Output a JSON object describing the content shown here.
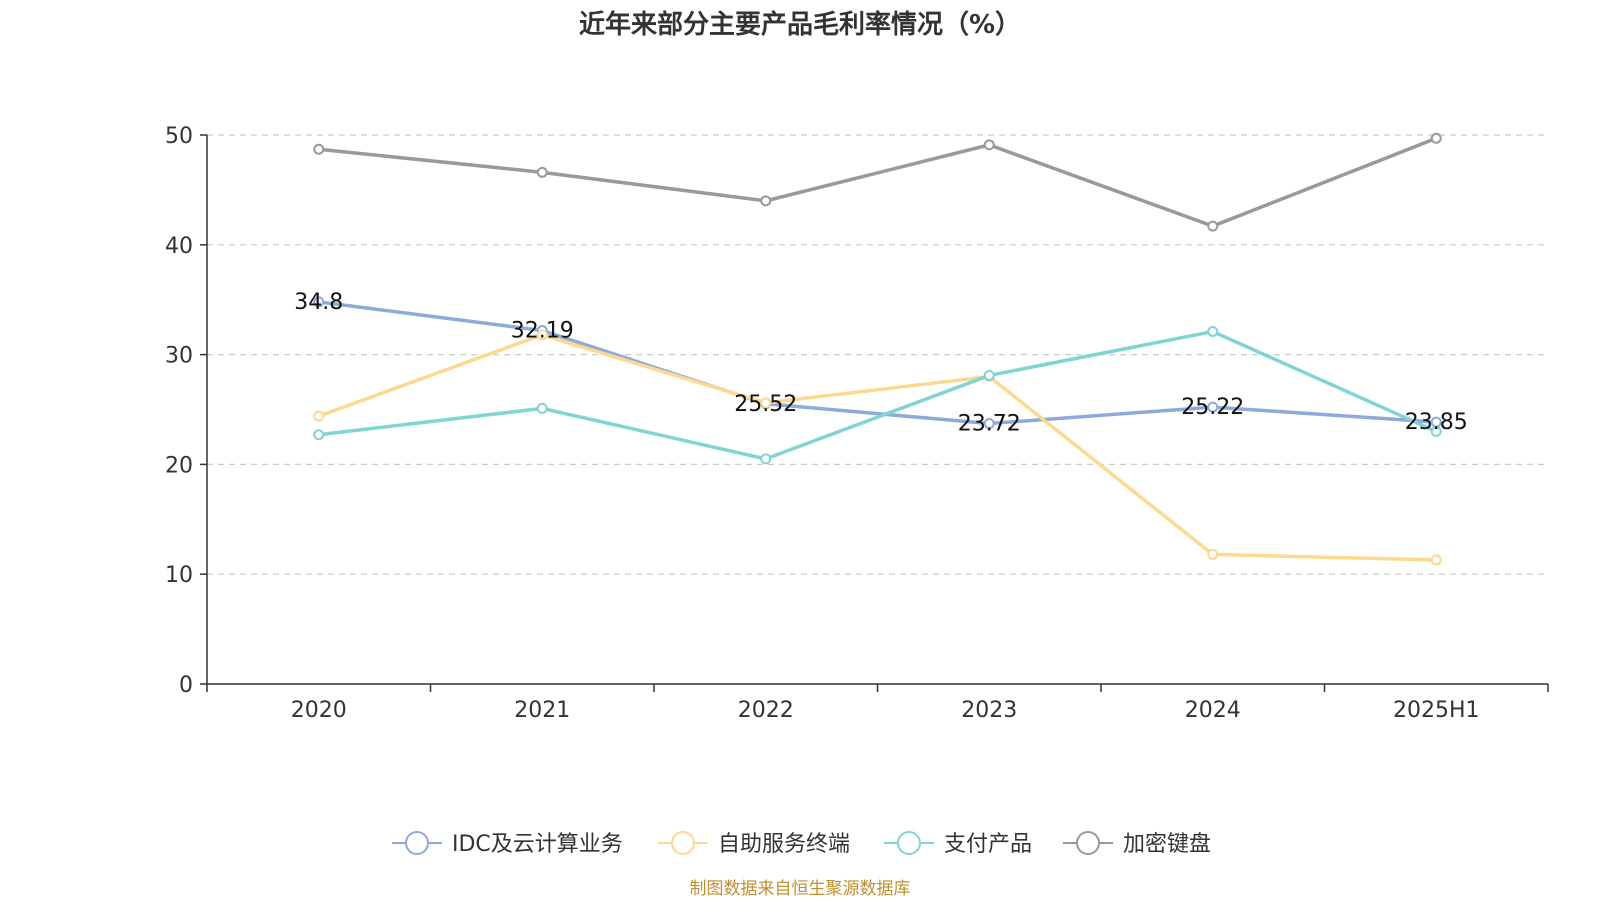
{
  "chart_data": {
    "type": "line",
    "title": "近年来部分主要产品毛利率情况（%）",
    "categories": [
      "2020",
      "2021",
      "2022",
      "2023",
      "2024",
      "2025H1"
    ],
    "ylim": [
      0,
      50
    ],
    "yticks": [
      0,
      10,
      20,
      30,
      40,
      50
    ],
    "grid": true,
    "legend_position": "bottom",
    "series": [
      {
        "name": "IDC及云计算业务",
        "color": "#8eaadb",
        "values": [
          34.8,
          32.19,
          25.52,
          23.72,
          25.22,
          23.85
        ],
        "show_labels": true
      },
      {
        "name": "自助服务终端",
        "color": "#fcd98f",
        "values": [
          24.4,
          31.8,
          25.6,
          28.0,
          11.8,
          11.3
        ],
        "show_labels": false
      },
      {
        "name": "支付产品",
        "color": "#80d4d4",
        "values": [
          22.7,
          25.1,
          20.5,
          28.1,
          32.1,
          23.0
        ],
        "show_labels": false
      },
      {
        "name": "加密键盘",
        "color": "#999999",
        "values": [
          48.7,
          46.6,
          44.0,
          49.1,
          41.7,
          49.7
        ],
        "show_labels": false
      }
    ]
  },
  "source": "制图数据来自恒生聚源数据库"
}
